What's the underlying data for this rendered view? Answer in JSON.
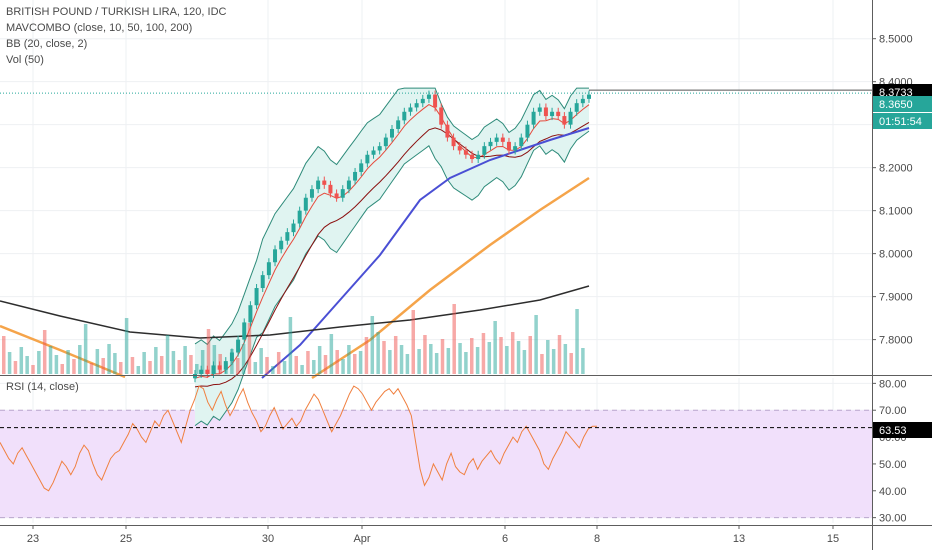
{
  "legend": {
    "title": "BRITISH POUND / TURKISH LIRA, 120, IDC",
    "mav": "MAVCOMBO (close, 10, 50, 100, 200)",
    "bb": "BB (20, close, 2)",
    "vol": "Vol (50)"
  },
  "rsi_legend": "RSI (14, close)",
  "price_labels": {
    "last": "8.3733",
    "bid": "8.3650",
    "countdown": "01:51:54",
    "rsi_value": "63.53"
  },
  "colors": {
    "bull": "#26a69a",
    "bear": "#ef5350",
    "bb_fill": "#e0f4f1",
    "bb_line": "#2e8b7a",
    "ma10": "#e64a3c",
    "ma50": "#8b0f0f",
    "ma100": "#4a4fd4",
    "ma200": "#f5a44a",
    "ma_long": "#2d2d2d",
    "rsi_line": "#f08040",
    "rsi_band": "#f1e0fb",
    "last_label_bg": "#000000",
    "bid_label_bg": "#26a69a"
  },
  "chart_data": [
    {
      "type": "candlestick",
      "title": "BRITISH POUND / TURKISH LIRA, 120, IDC",
      "x_ticks": [
        "23",
        "25",
        "30",
        "Apr",
        "6",
        "8",
        "13",
        "15"
      ],
      "y_ticks": [
        "7.8000",
        "7.9000",
        "8.0000",
        "8.1000",
        "8.2000",
        "8.3000",
        "8.4000",
        "8.5000"
      ],
      "ylim": [
        7.72,
        8.59
      ],
      "grid": true,
      "last_price": 8.3733,
      "bid_price": 8.365,
      "close": [
        7.72,
        7.73,
        7.72,
        7.74,
        7.73,
        7.75,
        7.77,
        7.8,
        7.84,
        7.88,
        7.92,
        7.95,
        7.98,
        8.01,
        8.03,
        8.05,
        8.07,
        8.1,
        8.13,
        8.15,
        8.17,
        8.16,
        8.14,
        8.13,
        8.15,
        8.17,
        8.19,
        8.21,
        8.23,
        8.24,
        8.25,
        8.27,
        8.29,
        8.31,
        8.33,
        8.34,
        8.35,
        8.36,
        8.37,
        8.34,
        8.3,
        8.27,
        8.25,
        8.24,
        8.23,
        8.22,
        8.23,
        8.25,
        8.26,
        8.27,
        8.26,
        8.24,
        8.25,
        8.27,
        8.3,
        8.33,
        8.34,
        8.32,
        8.33,
        8.32,
        8.3,
        8.33,
        8.35,
        8.36,
        8.37
      ]
    },
    {
      "type": "line",
      "title": "RSI (14, close)",
      "y_ticks": [
        "30.00",
        "40.00",
        "50.00",
        "60.00",
        "70.00",
        "80.00"
      ],
      "ylim": [
        28,
        82
      ],
      "band": [
        30,
        70
      ],
      "current": 63.53,
      "values": [
        58,
        55,
        52,
        50,
        54,
        56,
        53,
        50,
        47,
        44,
        41,
        40,
        43,
        47,
        51,
        49,
        46,
        49,
        54,
        57,
        55,
        50,
        46,
        44,
        48,
        52,
        54,
        55,
        58,
        61,
        65,
        63,
        60,
        58,
        62,
        66,
        64,
        68,
        70,
        66,
        62,
        58,
        64,
        70,
        74,
        79,
        78,
        73,
        70,
        74,
        77,
        72,
        68,
        71,
        75,
        78,
        73,
        69,
        66,
        62,
        64,
        68,
        71,
        67,
        63,
        65,
        67,
        64,
        66,
        70,
        73,
        76,
        74,
        70,
        66,
        62,
        65,
        68,
        72,
        76,
        79,
        78,
        76,
        73,
        70,
        73,
        75,
        77,
        78,
        76,
        78,
        75,
        72,
        68,
        58,
        48,
        42,
        45,
        50,
        47,
        44,
        50,
        54,
        49,
        47,
        46,
        50,
        52,
        48,
        51,
        53,
        55,
        52,
        50,
        54,
        57,
        60,
        58,
        62,
        64,
        61,
        58,
        55,
        50,
        48,
        52,
        55,
        58,
        62,
        60,
        58,
        56,
        60,
        63,
        64,
        64
      ]
    }
  ]
}
